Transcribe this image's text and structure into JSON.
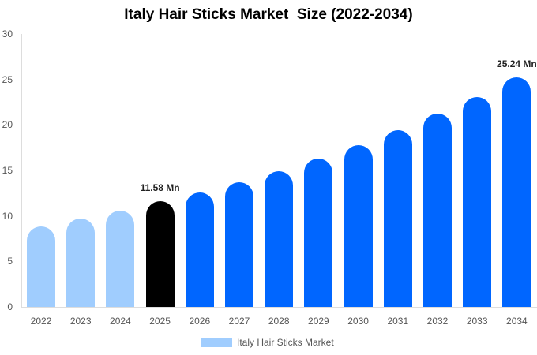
{
  "chart_data": {
    "type": "bar",
    "title": "Italy Hair Sticks Market  Size (2022-2034)",
    "xlabel": "",
    "ylabel": "",
    "ylim": [
      0,
      30
    ],
    "yticks": [
      0,
      5,
      10,
      15,
      20,
      25,
      30
    ],
    "grid": false,
    "legend_position": "bottom",
    "categories": [
      "2022",
      "2023",
      "2024",
      "2025",
      "2026",
      "2027",
      "2028",
      "2029",
      "2030",
      "2031",
      "2032",
      "2033",
      "2034"
    ],
    "series": [
      {
        "name": "Italy Hair Sticks Market",
        "values": [
          8.85,
          9.71,
          10.58,
          11.58,
          12.58,
          13.7,
          14.9,
          16.3,
          17.8,
          19.4,
          21.2,
          23.1,
          25.24
        ]
      }
    ],
    "bar_colors": [
      "#a0cdfe",
      "#a0cdfe",
      "#a0cdfe",
      "#000000",
      "#0066ff",
      "#0066ff",
      "#0066ff",
      "#0066ff",
      "#0066ff",
      "#0066ff",
      "#0066ff",
      "#0066ff",
      "#0066ff"
    ],
    "annotations": [
      {
        "category": "2025",
        "text": "11.58 Mn"
      },
      {
        "category": "2034",
        "text": "25.24 Mn"
      }
    ]
  },
  "legend": {
    "label": "Italy Hair Sticks Market",
    "color": "#a0cdfe"
  }
}
